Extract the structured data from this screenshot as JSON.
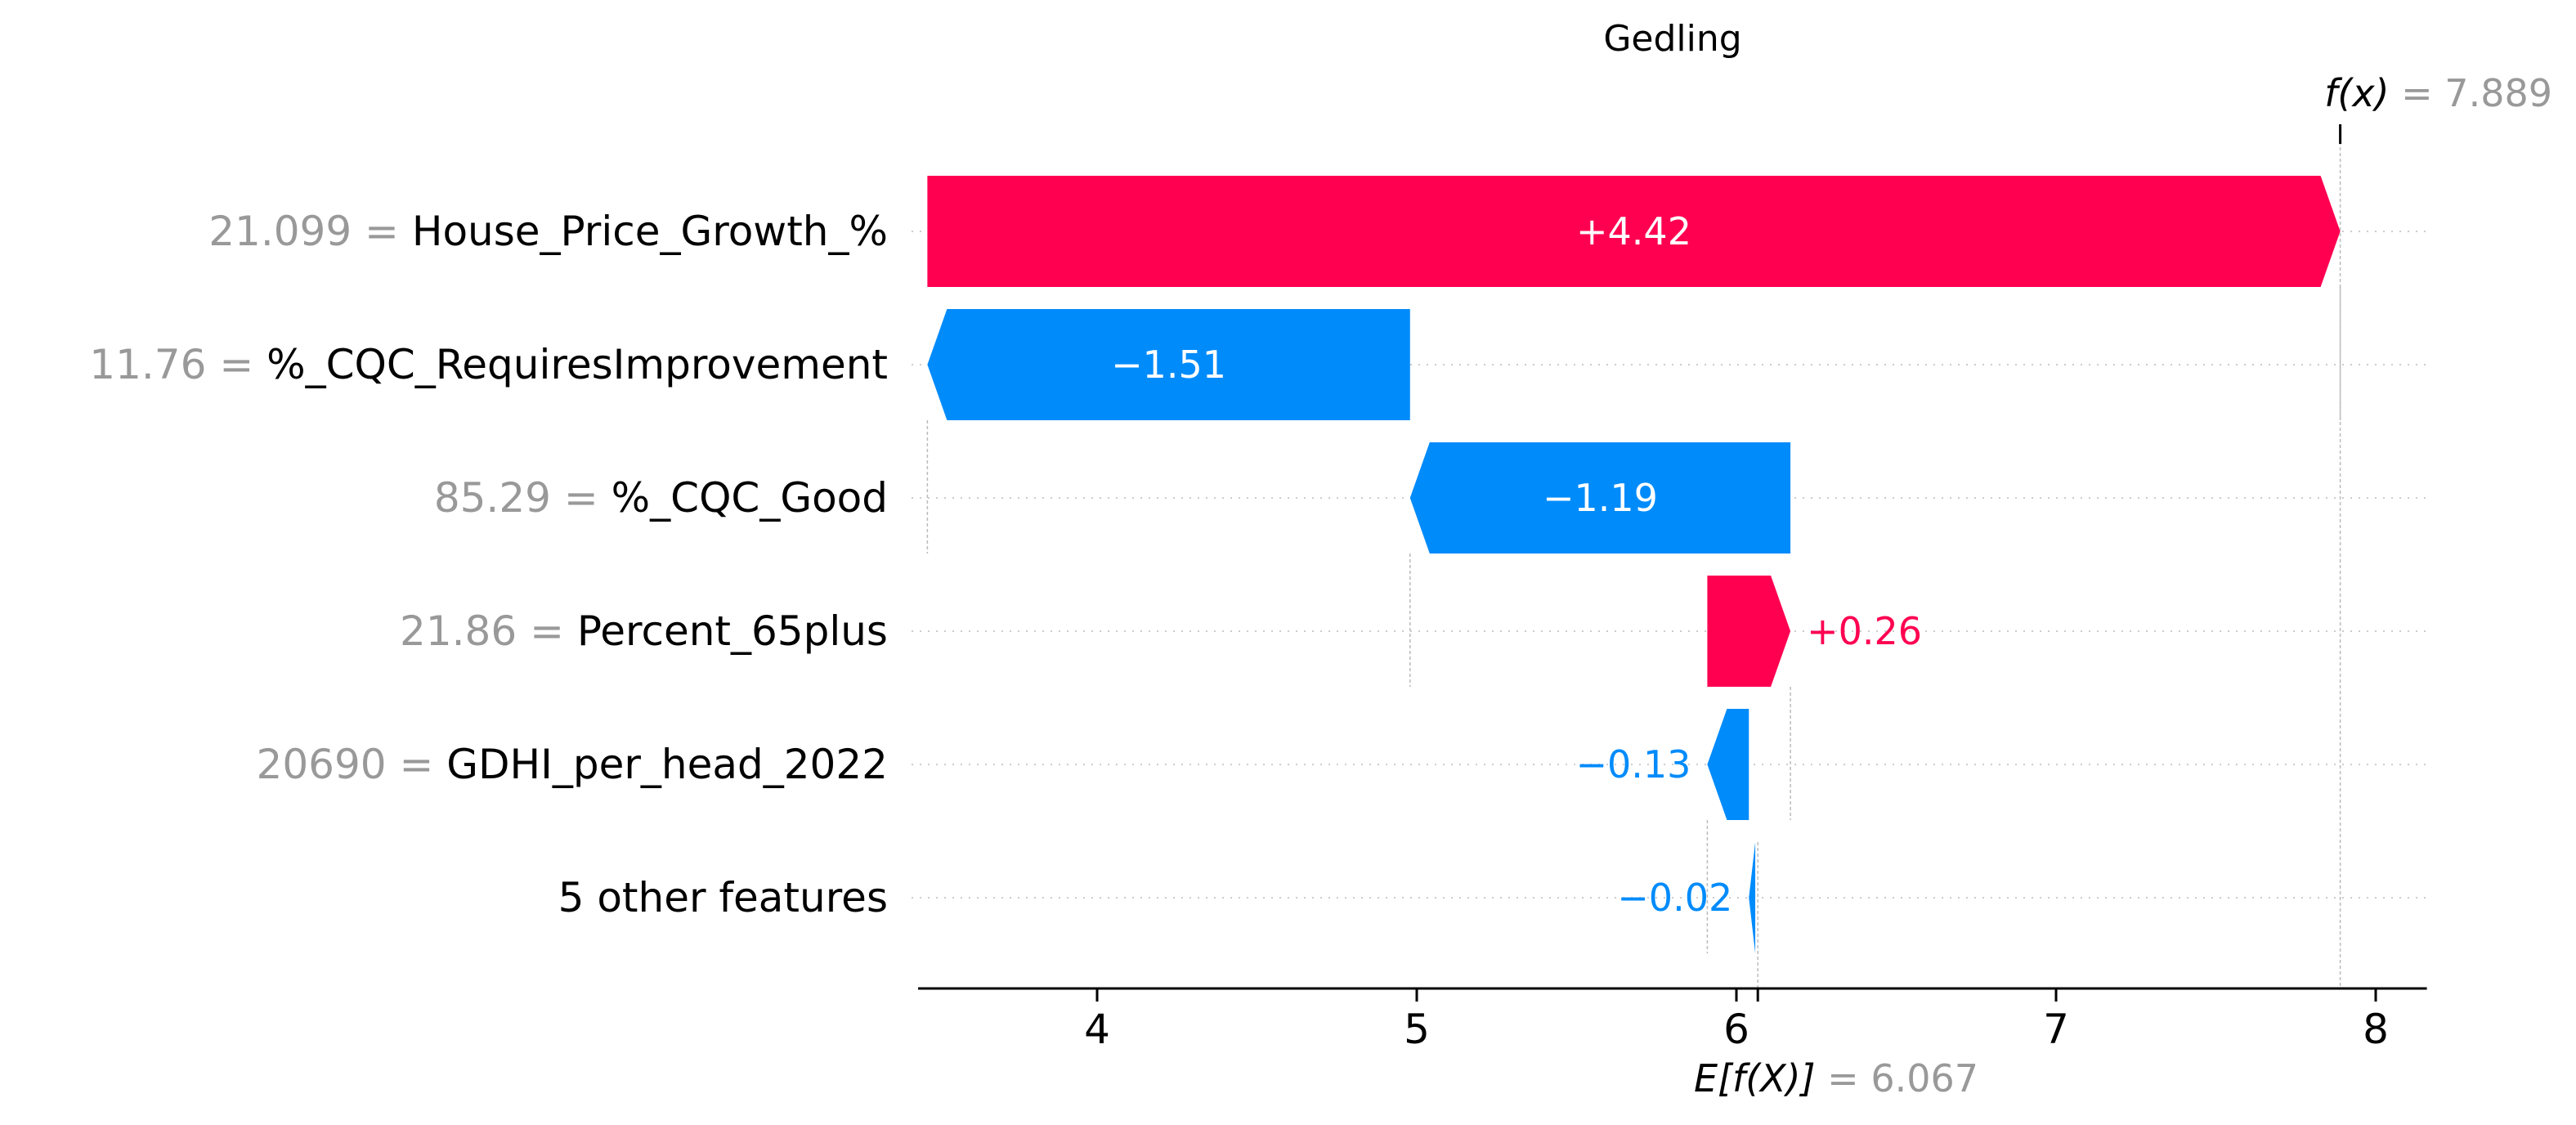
{
  "chart_data": {
    "type": "waterfall",
    "title": "Gedling",
    "base_value": 6.067,
    "output_value": 7.889,
    "output_label_prefix": "f(x)",
    "output_label_value": "= 7.889",
    "base_label_prefix": "E[f(X)]",
    "base_label_value": "= 6.067",
    "xlim": [
      3.44,
      8.16
    ],
    "xticks": [
      4,
      5,
      6,
      7,
      8
    ],
    "colors": {
      "positive": "#ff0051",
      "negative": "#008bfb",
      "value_gray": "#999999"
    },
    "features": [
      {
        "name": "House_Price_Growth_%",
        "value_text": "21.099 =",
        "contribution": 4.42,
        "label": "+4.42",
        "start": 3.469,
        "end": 7.889
      },
      {
        "name": "%_CQC_RequiresImprovement",
        "value_text": "11.76 =",
        "contribution": -1.51,
        "label": "−1.51",
        "start": 4.979,
        "end": 3.469
      },
      {
        "name": "%_CQC_Good",
        "value_text": "85.29 =",
        "contribution": -1.19,
        "label": "−1.19",
        "start": 6.169,
        "end": 4.979
      },
      {
        "name": "Percent_65plus",
        "value_text": "21.86 =",
        "contribution": 0.26,
        "label": "+0.26",
        "start": 5.909,
        "end": 6.169
      },
      {
        "name": "GDHI_per_head_2022",
        "value_text": "20690 =",
        "contribution": -0.13,
        "label": "−0.13",
        "start": 6.039,
        "end": 5.909
      },
      {
        "name": "5 other features",
        "value_text": "",
        "contribution": -0.02,
        "label": "−0.02",
        "start": 6.059,
        "end": 6.039
      }
    ]
  }
}
